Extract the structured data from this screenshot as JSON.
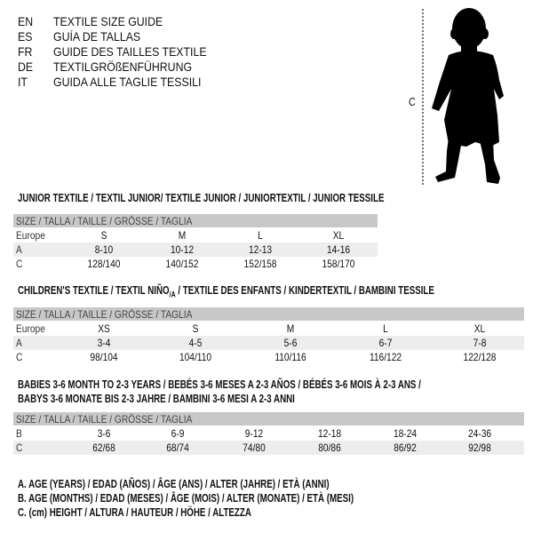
{
  "languages": [
    {
      "code": "EN",
      "title": "TEXTILE SIZE GUIDE"
    },
    {
      "code": "ES",
      "title": "GUÍA DE TALLAS"
    },
    {
      "code": "FR",
      "title": "GUIDE DES TAILLES TEXTILE"
    },
    {
      "code": "DE",
      "title": "TEXTILGRÖßENFÜHRUNG"
    },
    {
      "code": "IT",
      "title": "GUIDA ALLE TAGLIE TESSILI"
    }
  ],
  "figure": {
    "measure_label": "C"
  },
  "junior": {
    "title": "JUNIOR TEXTILE / TEXTIL JUNIOR/ TEXTILE JUNIOR / JUNIORTEXTIL / JUNIOR TESSILE",
    "header": "SIZE / TALLA / TAILLE / GRÖSSE / TAGLIA",
    "rows": [
      {
        "label": "Europe",
        "values": [
          "S",
          "M",
          "L",
          "XL"
        ]
      },
      {
        "label": "A",
        "values": [
          "8-10",
          "10-12",
          "12-13",
          "14-16"
        ]
      },
      {
        "label": "C",
        "values": [
          "128/140",
          "140/152",
          "152/158",
          "158/170"
        ]
      }
    ]
  },
  "children": {
    "title_pre": "CHILDREN'S TEXTILE / TEXTIL NIÑO",
    "title_sub": "/A",
    "title_post": " / TEXTILE DES ENFANTS / KINDERTEXTIL / BAMBINI TESSILE",
    "header": "SIZE / TALLA / TAILLE / GRÖSSE / TAGLIA",
    "rows": [
      {
        "label": "Europe",
        "values": [
          "XS",
          "S",
          "M",
          "L",
          "XL"
        ]
      },
      {
        "label": "A",
        "values": [
          "3-4",
          "4-5",
          "5-6",
          "6-7",
          "7-8"
        ]
      },
      {
        "label": "C",
        "values": [
          "98/104",
          "104/110",
          "110/116",
          "116/122",
          "122/128"
        ]
      }
    ]
  },
  "babies": {
    "title_line1": "BABIES 3-6 MONTH TO 2-3 YEARS / BEBÉS 3-6 MESES A 2-3 AÑOS / BÉBÉS 3-6 MOIS À 2-3 ANS /",
    "title_line2": "BABYS 3-6 MONATE BIS 2-3 JAHRE / BAMBINI 3-6 MESI A 2-3 ANNI",
    "header": "SIZE / TALLA / TAILLE / GRÖSSE / TAGLIA",
    "rows": [
      {
        "label": "B",
        "values": [
          "3-6",
          "6-9",
          "9-12",
          "12-18",
          "18-24",
          "24-36"
        ]
      },
      {
        "label": "C",
        "values": [
          "62/68",
          "68/74",
          "74/80",
          "80/86",
          "86/92",
          "92/98"
        ]
      }
    ]
  },
  "legend": [
    "A. AGE (YEARS) / EDAD (AÑOS) / ÂGE (ANS) / ALTER (JAHRE) / ETÀ (ANNI)",
    "B. AGE (MONTHS) / EDAD (MESES) / ÂGE (MOIS) / ALTER (MONATE) / ETÀ (MESI)",
    "C. (cm) HEIGHT / ALTURA / HAUTEUR / HÖHE / ALTEZZA"
  ],
  "colors": {
    "header_bg": "#c8c8c8",
    "stripe_bg": "#ededed"
  }
}
